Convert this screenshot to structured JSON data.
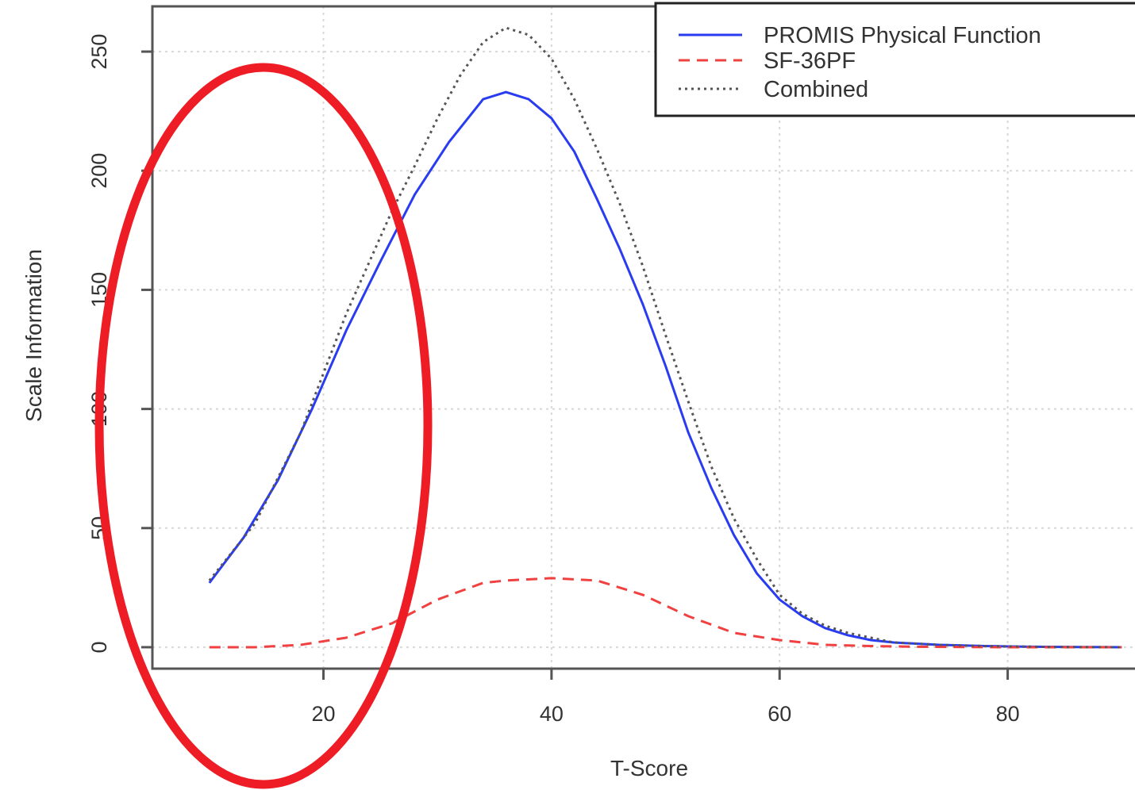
{
  "chart_data": {
    "type": "line",
    "title": "",
    "xlabel": "T-Score",
    "ylabel": "Scale Information",
    "xlim": [
      5,
      92
    ],
    "ylim": [
      -9,
      269
    ],
    "x_ticks": [
      20,
      40,
      60,
      80
    ],
    "y_ticks": [
      0,
      50,
      100,
      150,
      200,
      250
    ],
    "grid": true,
    "legend_position": "top-right",
    "series": [
      {
        "name": "PROMIS Physical Function",
        "color": "#2a3cf0",
        "dash": "solid",
        "x": [
          10,
          13,
          16,
          19,
          22,
          25,
          28,
          31,
          34,
          36,
          38,
          40,
          42,
          44,
          46,
          48,
          50,
          52,
          54,
          56,
          58,
          60,
          62,
          64,
          66,
          68,
          70,
          74,
          78,
          82,
          86,
          90
        ],
        "values": [
          27,
          46,
          70,
          100,
          133,
          162,
          190,
          212,
          230,
          233,
          230,
          222,
          208,
          188,
          167,
          144,
          118,
          90,
          67,
          47,
          31,
          20,
          13,
          8,
          5,
          3,
          2,
          1,
          0.5,
          0.2,
          0.1,
          0
        ]
      },
      {
        "name": "SF-36PF",
        "color": "#f04040",
        "dash": "dashed",
        "x": [
          10,
          14,
          18,
          22,
          26,
          30,
          34,
          36,
          40,
          44,
          48,
          52,
          56,
          60,
          64,
          68,
          72,
          80,
          90
        ],
        "values": [
          0,
          0,
          1,
          4,
          10,
          20,
          27,
          28,
          29,
          28,
          22,
          13,
          6,
          3,
          1,
          0.5,
          0.2,
          0,
          0
        ]
      },
      {
        "name": "Combined",
        "color": "#555555",
        "dash": "dotted",
        "x": [
          10,
          14,
          18,
          22,
          26,
          28,
          30,
          32,
          34,
          36,
          38,
          40,
          42,
          44,
          46,
          48,
          50,
          52,
          54,
          56,
          58,
          60,
          62,
          64,
          66,
          68,
          70,
          74,
          78,
          84,
          90
        ],
        "values": [
          28,
          52,
          90,
          140,
          183,
          202,
          222,
          240,
          254,
          260,
          257,
          247,
          230,
          209,
          186,
          160,
          131,
          103,
          76,
          54,
          37,
          22,
          14,
          9,
          6,
          4,
          2,
          1,
          0.5,
          0.1,
          0
        ]
      }
    ]
  },
  "annotation": {
    "color": "#ee1c24"
  }
}
